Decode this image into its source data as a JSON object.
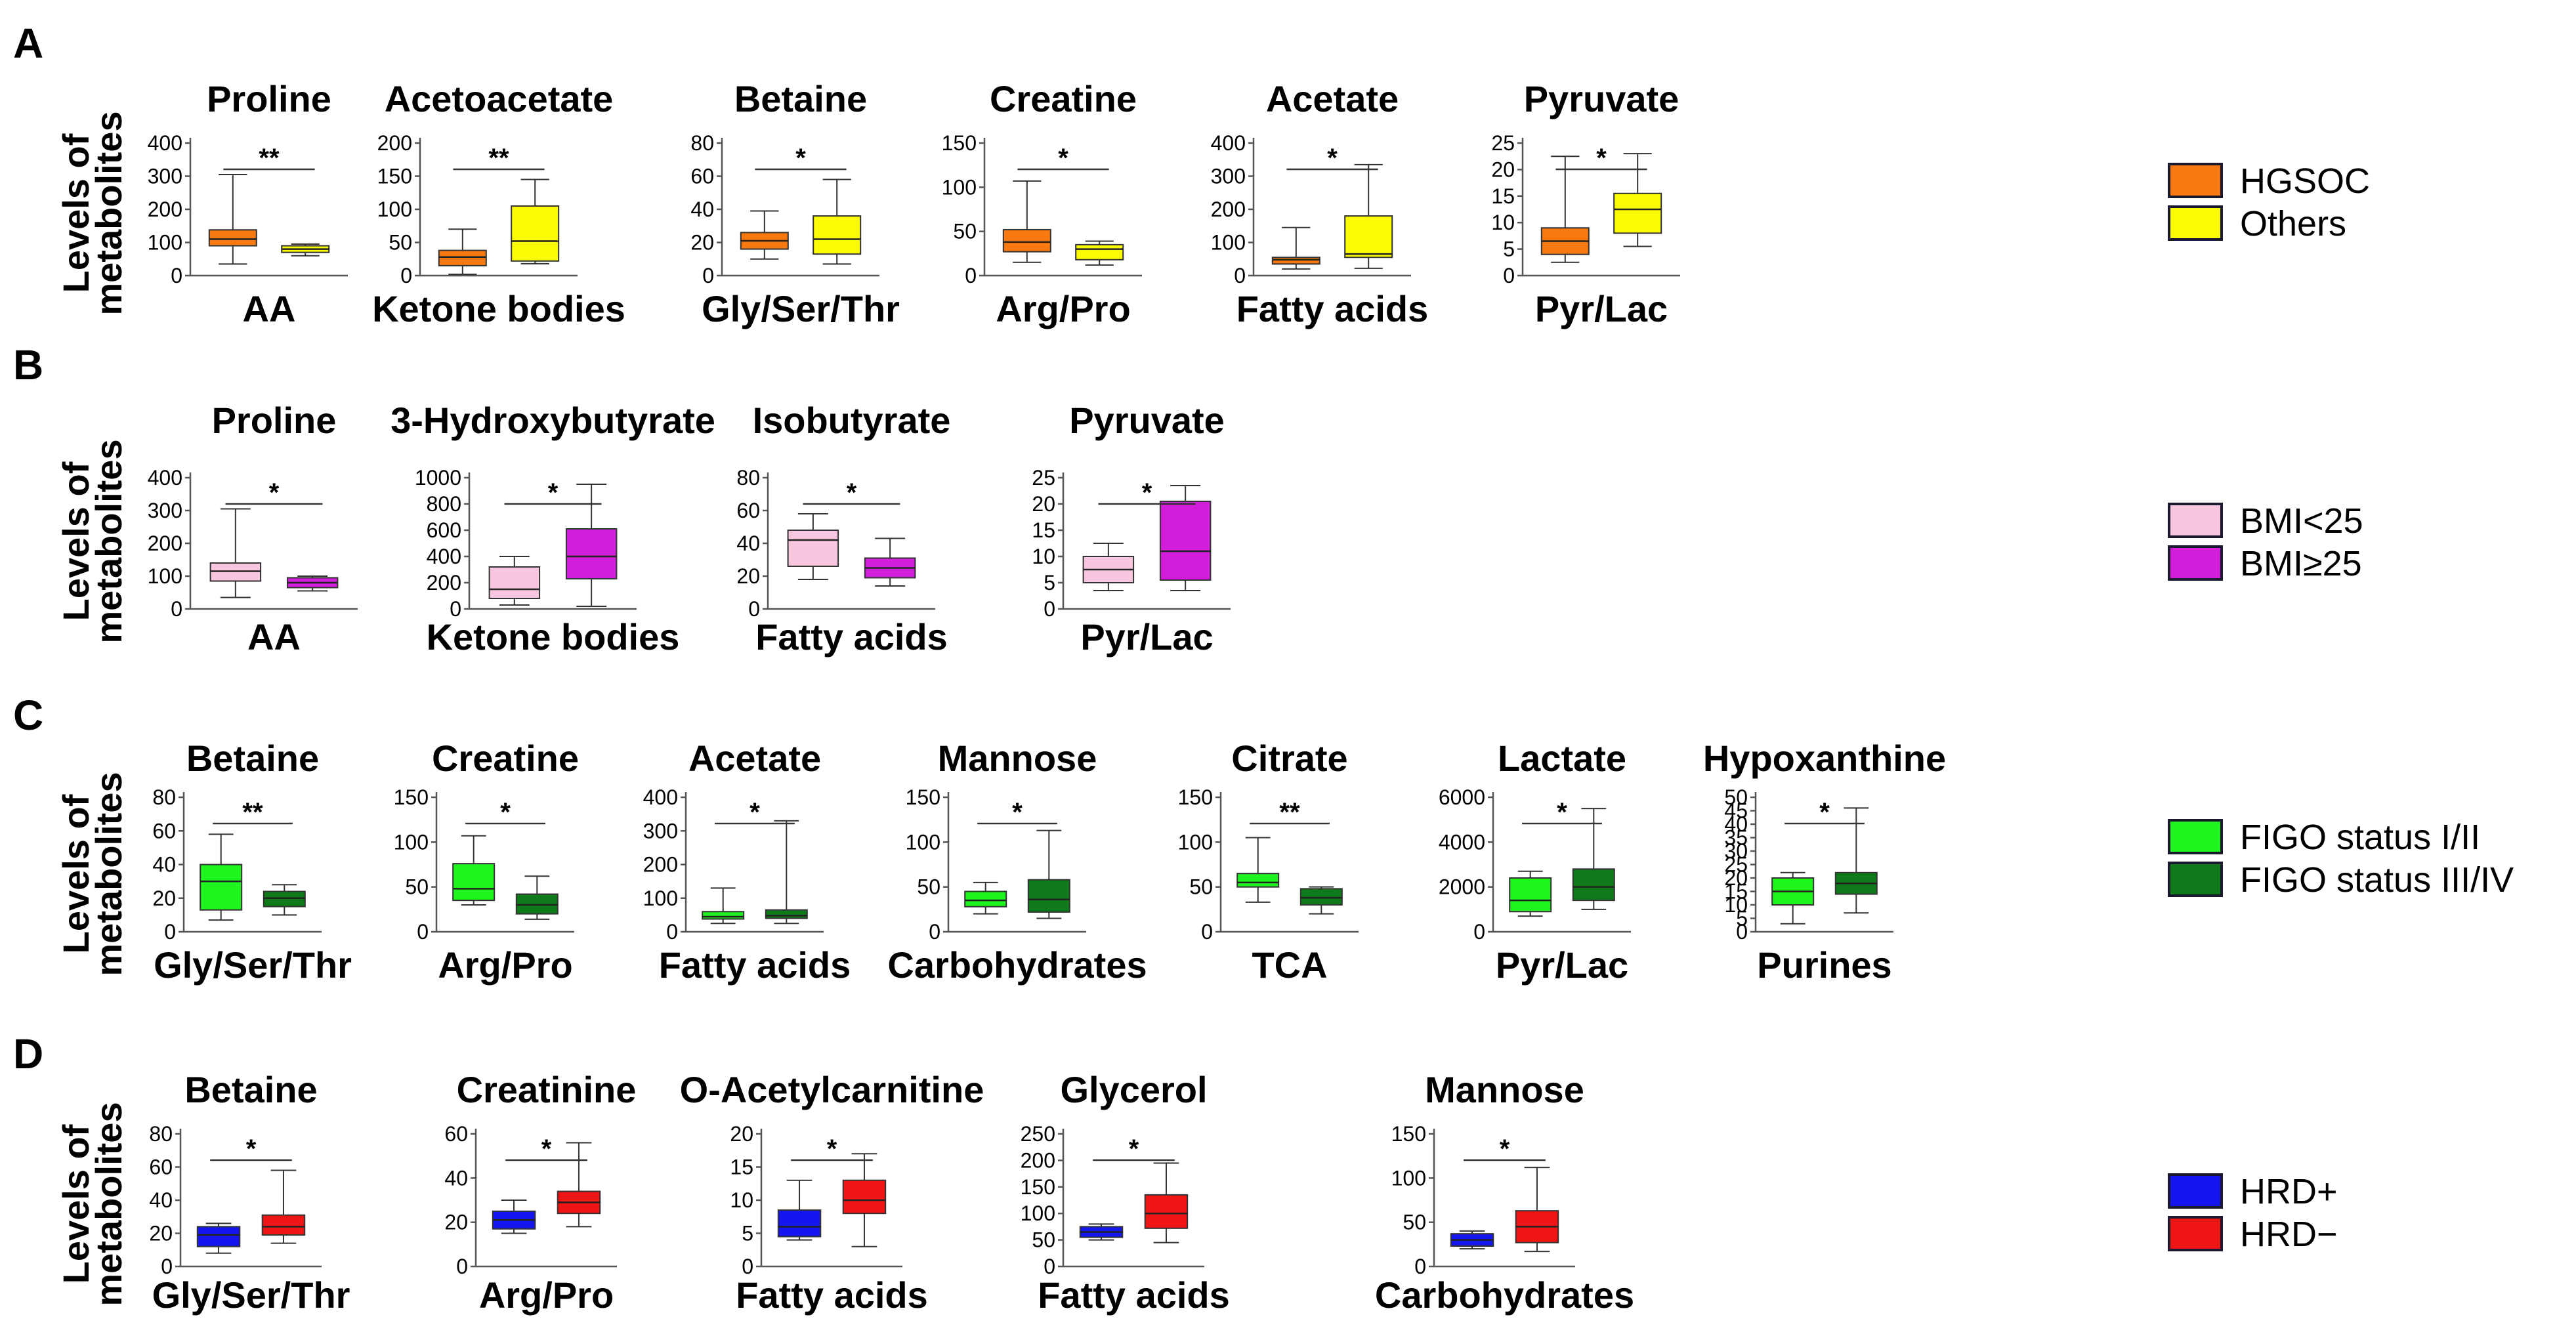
{
  "chart_data": [
    {
      "panel": "A",
      "type": "boxplot",
      "ylabel_line1": "Levels of",
      "ylabel_line2": "metabolites",
      "groups": [
        {
          "name": "HGSOC",
          "color": "#F7790F"
        },
        {
          "name": "Others",
          "color": "#FBFB06"
        }
      ],
      "subplots": [
        {
          "title": "Proline",
          "category": "AA",
          "ylim": [
            0,
            400
          ],
          "ticks": [
            "400",
            "300",
            "200",
            "100",
            "0"
          ],
          "sig": "**",
          "boxes": [
            {
              "min": 35,
              "q1": 90,
              "median": 110,
              "q3": 138,
              "max": 305
            },
            {
              "min": 60,
              "q1": 70,
              "median": 80,
              "q3": 90,
              "max": 95
            }
          ]
        },
        {
          "title": "Acetoacetate",
          "category": "Ketone bodies",
          "ylim": [
            0,
            200
          ],
          "ticks": [
            "200",
            "150",
            "100",
            "50",
            "0"
          ],
          "sig": "**",
          "boxes": [
            {
              "min": 2,
              "q1": 15,
              "median": 28,
              "q3": 38,
              "max": 70
            },
            {
              "min": 18,
              "q1": 22,
              "median": 52,
              "q3": 105,
              "max": 145
            }
          ]
        },
        {
          "title": "Betaine",
          "category": "Gly/Ser/Thr",
          "ylim": [
            0,
            80
          ],
          "ticks": [
            "80",
            "60",
            "40",
            "20",
            "0"
          ],
          "sig": "*",
          "boxes": [
            {
              "min": 10,
              "q1": 16,
              "median": 21,
              "q3": 26,
              "max": 39
            },
            {
              "min": 7,
              "q1": 13,
              "median": 22,
              "q3": 36,
              "max": 58
            }
          ]
        },
        {
          "title": "Creatine",
          "category": "Arg/Pro",
          "ylim": [
            0,
            150
          ],
          "ticks": [
            "150",
            "100",
            "50",
            "0"
          ],
          "sig": "*",
          "boxes": [
            {
              "min": 15,
              "q1": 27,
              "median": 38,
              "q3": 52,
              "max": 107
            },
            {
              "min": 12,
              "q1": 18,
              "median": 30,
              "q3": 35,
              "max": 39
            }
          ]
        },
        {
          "title": "Acetate",
          "category": "Fatty acids",
          "ylim": [
            0,
            400
          ],
          "ticks": [
            "400",
            "300",
            "200",
            "100",
            "0"
          ],
          "sig": "*",
          "boxes": [
            {
              "min": 20,
              "q1": 35,
              "median": 48,
              "q3": 55,
              "max": 145
            },
            {
              "min": 22,
              "q1": 55,
              "median": 65,
              "q3": 180,
              "max": 335
            }
          ]
        },
        {
          "title": "Pyruvate",
          "category": "Pyr/Lac",
          "ylim": [
            0,
            25
          ],
          "ticks": [
            "25",
            "20",
            "15",
            "10",
            "5",
            "0"
          ],
          "sig": "*",
          "boxes": [
            {
              "min": 2.5,
              "q1": 4,
              "median": 6.5,
              "q3": 9,
              "max": 22.5
            },
            {
              "min": 5.5,
              "q1": 8,
              "median": 12.5,
              "q3": 15.5,
              "max": 23
            }
          ]
        }
      ]
    },
    {
      "panel": "B",
      "type": "boxplot",
      "ylabel_line1": "Levels of",
      "ylabel_line2": "metabolites",
      "groups": [
        {
          "name": "BMI<25",
          "color": "#F9C6E0"
        },
        {
          "name": "BMI≥25",
          "color": "#D21EDA"
        }
      ],
      "subplots": [
        {
          "title": "Proline",
          "category": "AA",
          "ylim": [
            0,
            400
          ],
          "ticks": [
            "400",
            "300",
            "200",
            "100",
            "0"
          ],
          "sig": "*",
          "boxes": [
            {
              "min": 35,
              "q1": 85,
              "median": 115,
              "q3": 140,
              "max": 305
            },
            {
              "min": 55,
              "q1": 65,
              "median": 80,
              "q3": 95,
              "max": 100
            }
          ]
        },
        {
          "title": "3-Hydroxybutyrate",
          "category": "Ketone bodies",
          "ylim": [
            0,
            1000
          ],
          "ticks": [
            "1000",
            "800",
            "600",
            "400",
            "200",
            "0"
          ],
          "sig": "*",
          "boxes": [
            {
              "min": 30,
              "q1": 80,
              "median": 150,
              "q3": 320,
              "max": 400
            },
            {
              "min": 20,
              "q1": 230,
              "median": 400,
              "q3": 610,
              "max": 950
            }
          ]
        },
        {
          "title": "Isobutyrate",
          "category": "Fatty acids",
          "ylim": [
            0,
            80
          ],
          "ticks": [
            "80",
            "60",
            "40",
            "20",
            "0"
          ],
          "sig": "*",
          "boxes": [
            {
              "min": 18,
              "q1": 26,
              "median": 42,
              "q3": 48,
              "max": 58
            },
            {
              "min": 14,
              "q1": 19,
              "median": 25,
              "q3": 31,
              "max": 43
            }
          ]
        },
        {
          "title": "Pyruvate",
          "category": "Pyr/Lac",
          "ylim": [
            0,
            25
          ],
          "ticks": [
            "25",
            "20",
            "15",
            "10",
            "5",
            "0"
          ],
          "sig": "*",
          "boxes": [
            {
              "min": 3.5,
              "q1": 5,
              "median": 7.5,
              "q3": 10,
              "max": 12.5
            },
            {
              "min": 3.5,
              "q1": 5.5,
              "median": 11,
              "q3": 20.5,
              "max": 23.5
            }
          ]
        }
      ]
    },
    {
      "panel": "C",
      "type": "boxplot",
      "ylabel_line1": "Levels of",
      "ylabel_line2": "metabolites",
      "groups": [
        {
          "name": "FIGO status I/II",
          "color": "#1EF51E"
        },
        {
          "name": "FIGO status III/IV",
          "color": "#0F7A1A"
        }
      ],
      "subplots": [
        {
          "title": "Betaine",
          "category": "Gly/Ser/Thr",
          "ylim": [
            0,
            80
          ],
          "ticks": [
            "80",
            "60",
            "40",
            "20",
            "0"
          ],
          "sig": "**",
          "boxes": [
            {
              "min": 7,
              "q1": 13,
              "median": 30,
              "q3": 40,
              "max": 58
            },
            {
              "min": 10,
              "q1": 15,
              "median": 20,
              "q3": 24,
              "max": 28
            }
          ]
        },
        {
          "title": "Creatine",
          "category": "Arg/Pro",
          "ylim": [
            0,
            150
          ],
          "ticks": [
            "150",
            "100",
            "50",
            "0"
          ],
          "sig": "*",
          "boxes": [
            {
              "min": 30,
              "q1": 35,
              "median": 48,
              "q3": 76,
              "max": 107
            },
            {
              "min": 14,
              "q1": 20,
              "median": 30,
              "q3": 42,
              "max": 62
            }
          ]
        },
        {
          "title": "Acetate",
          "category": "Fatty acids",
          "ylim": [
            0,
            400
          ],
          "ticks": [
            "400",
            "300",
            "200",
            "100",
            "0"
          ],
          "sig": "*",
          "boxes": [
            {
              "min": 25,
              "q1": 38,
              "median": 45,
              "q3": 60,
              "max": 130
            },
            {
              "min": 25,
              "q1": 40,
              "median": 48,
              "q3": 65,
              "max": 330
            }
          ]
        },
        {
          "title": "Mannose",
          "category": "Carbohydrates",
          "ylim": [
            0,
            150
          ],
          "ticks": [
            "150",
            "100",
            "50",
            "0"
          ],
          "sig": "*",
          "boxes": [
            {
              "min": 20,
              "q1": 28,
              "median": 35,
              "q3": 45,
              "max": 55
            },
            {
              "min": 15,
              "q1": 22,
              "median": 36,
              "q3": 58,
              "max": 113
            }
          ]
        },
        {
          "title": "Citrate",
          "category": "TCA",
          "ylim": [
            0,
            150
          ],
          "ticks": [
            "150",
            "100",
            "50",
            "0"
          ],
          "sig": "**",
          "boxes": [
            {
              "min": 33,
              "q1": 50,
              "median": 55,
              "q3": 65,
              "max": 105
            },
            {
              "min": 20,
              "q1": 30,
              "median": 38,
              "q3": 48,
              "max": 50
            }
          ]
        },
        {
          "title": "Lactate",
          "category": "Pyr/Lac",
          "ylim": [
            0,
            6000
          ],
          "ticks": [
            "6000",
            "4000",
            "2000",
            "0"
          ],
          "sig": "*",
          "boxes": [
            {
              "min": 700,
              "q1": 900,
              "median": 1400,
              "q3": 2400,
              "max": 2700
            },
            {
              "min": 1000,
              "q1": 1400,
              "median": 2000,
              "q3": 2800,
              "max": 5500
            }
          ]
        },
        {
          "title": "Hypoxanthine",
          "category": "Purines",
          "ylim": [
            0,
            50
          ],
          "ticks": [
            "50",
            "45",
            "40",
            "35",
            "30",
            "25",
            "20",
            "15",
            "10",
            "5",
            "0"
          ],
          "sig": "*",
          "boxes": [
            {
              "min": 3,
              "q1": 10,
              "median": 15,
              "q3": 20,
              "max": 22
            },
            {
              "min": 7,
              "q1": 14,
              "median": 18,
              "q3": 22,
              "max": 46
            }
          ]
        }
      ]
    },
    {
      "panel": "D",
      "type": "boxplot",
      "ylabel_line1": "Levels of",
      "ylabel_line2": "metabolites",
      "groups": [
        {
          "name": "HRD+",
          "color": "#1515F0"
        },
        {
          "name": "HRD−",
          "color": "#F01515"
        }
      ],
      "subplots": [
        {
          "title": "Betaine",
          "category": "Gly/Ser/Thr",
          "ylim": [
            0,
            80
          ],
          "ticks": [
            "80",
            "60",
            "40",
            "20",
            "0"
          ],
          "sig": "*",
          "boxes": [
            {
              "min": 8,
              "q1": 12,
              "median": 19,
              "q3": 24,
              "max": 26
            },
            {
              "min": 14,
              "q1": 19,
              "median": 24,
              "q3": 31,
              "max": 58
            }
          ]
        },
        {
          "title": "Creatinine",
          "category": "Arg/Pro",
          "ylim": [
            0,
            60
          ],
          "ticks": [
            "60",
            "40",
            "20",
            "0"
          ],
          "sig": "*",
          "boxes": [
            {
              "min": 15,
              "q1": 17,
              "median": 21,
              "q3": 25,
              "max": 30
            },
            {
              "min": 18,
              "q1": 24,
              "median": 29,
              "q3": 34,
              "max": 56
            }
          ]
        },
        {
          "title": "O-Acetylcarnitine",
          "category": "Fatty acids",
          "ylim": [
            0,
            20
          ],
          "ticks": [
            "20",
            "15",
            "10",
            "5",
            "0"
          ],
          "sig": "*",
          "boxes": [
            {
              "min": 4,
              "q1": 4.5,
              "median": 6,
              "q3": 8.5,
              "max": 13
            },
            {
              "min": 3,
              "q1": 8,
              "median": 10,
              "q3": 13,
              "max": 17
            }
          ]
        },
        {
          "title": "Glycerol",
          "category": "Fatty acids",
          "ylim": [
            0,
            250
          ],
          "ticks": [
            "250",
            "200",
            "150",
            "100",
            "50",
            "0"
          ],
          "sig": "*",
          "boxes": [
            {
              "min": 50,
              "q1": 55,
              "median": 65,
              "q3": 75,
              "max": 80
            },
            {
              "min": 45,
              "q1": 72,
              "median": 100,
              "q3": 135,
              "max": 195
            }
          ]
        },
        {
          "title": "Mannose",
          "category": "Carbohydrates",
          "ylim": [
            0,
            150
          ],
          "ticks": [
            "150",
            "100",
            "50",
            "0"
          ],
          "sig": "*",
          "boxes": [
            {
              "min": 20,
              "q1": 23,
              "median": 30,
              "q3": 37,
              "max": 40
            },
            {
              "min": 17,
              "q1": 27,
              "median": 45,
              "q3": 63,
              "max": 112
            }
          ]
        }
      ]
    }
  ]
}
